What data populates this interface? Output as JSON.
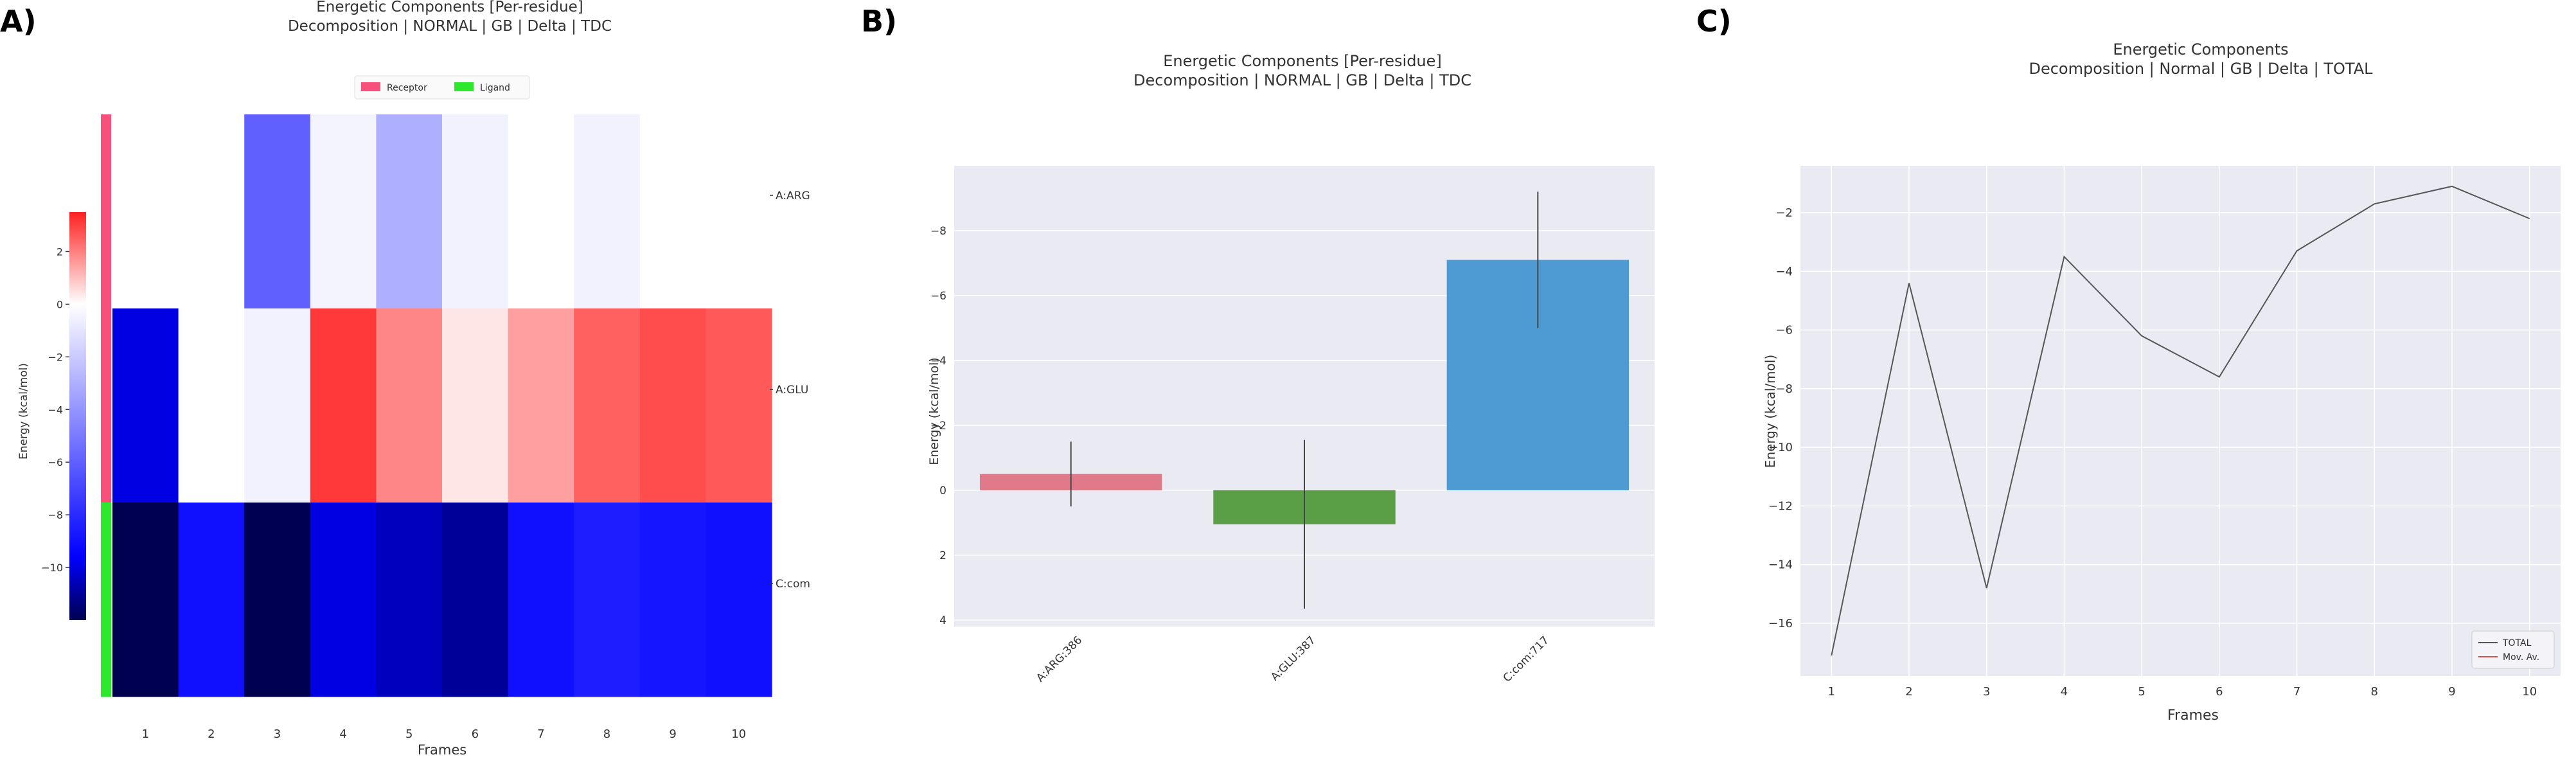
{
  "panels": {
    "A": {
      "label": "A)",
      "title_line1": "Energetic Components [Per-residue]",
      "title_line2": "Decomposition | NORMAL | GB | Delta | TDC",
      "legend": [
        {
          "name": "Receptor",
          "color": "#f7507a"
        },
        {
          "name": "Ligand",
          "color": "#2ee82e"
        }
      ],
      "colorbar_label": "Energy (kcal/mol)",
      "xlabel": "Frames"
    },
    "B": {
      "label": "B)",
      "title_line1": "Energetic Components [Per-residue]",
      "title_line2": "Decomposition | NORMAL | GB | Delta | TDC",
      "ylabel": "Energy (kcal/mol)"
    },
    "C": {
      "label": "C)",
      "title_line1": "Energetic Components",
      "title_line2": "Decomposition | Normal | GB | Delta | TOTAL",
      "ylabel": "Energy (kcal/mol)",
      "xlabel": "Frames",
      "legend": [
        {
          "name": "TOTAL",
          "color": "#555555"
        },
        {
          "name": "Mov. Av.",
          "color": "#e05050"
        }
      ]
    }
  },
  "chart_data": [
    {
      "type": "heatmap",
      "title": "Energetic Components [Per-residue]\nDecomposition | NORMAL | GB | Delta | TDC",
      "xlabel": "Frames",
      "x": [
        1,
        2,
        3,
        4,
        5,
        6,
        7,
        8,
        9,
        10
      ],
      "rows": [
        "A:ARG:386",
        "A:GLU:387",
        "C:com:717"
      ],
      "row_groups": [
        "Receptor",
        "Receptor",
        "Ligand"
      ],
      "values": [
        [
          0.0,
          0.0,
          -6.0,
          -0.4,
          -3.0,
          -0.5,
          0.0,
          -0.5,
          0.0,
          0.0
        ],
        [
          -10.0,
          0.0,
          -0.5,
          3.1,
          1.9,
          0.4,
          1.5,
          2.5,
          2.8,
          2.6
        ],
        [
          -12.0,
          -9.0,
          -13.0,
          -10.0,
          -10.5,
          -11.0,
          -9.0,
          -8.5,
          -8.8,
          -9.0
        ]
      ],
      "colorbar_ticks": [
        2,
        0,
        -2,
        -4,
        -6,
        -8,
        -10
      ],
      "colorbar_range": [
        -12,
        3.5
      ],
      "colorbar_label": "Energy (kcal/mol)"
    },
    {
      "type": "bar",
      "title": "Energetic Components [Per-residue]\nDecomposition | NORMAL | GB | Delta | TDC",
      "categories": [
        "A:ARG:386",
        "A:GLU:387",
        "C:com:717"
      ],
      "values": [
        -0.5,
        1.05,
        -7.1
      ],
      "errors": [
        1.0,
        2.6,
        2.1
      ],
      "colors": [
        "#e07a8a",
        "#5a9e45",
        "#4e9bd3"
      ],
      "ylabel": "Energy (kcal/mol)",
      "ylim": [
        4.2,
        -10
      ],
      "inverted_y": true,
      "yticks": [
        4,
        2,
        0,
        -2,
        -4,
        -6,
        -8
      ]
    },
    {
      "type": "line",
      "title": "Energetic Components\nDecomposition | Normal | GB | Delta | TOTAL",
      "x": [
        1,
        2,
        3,
        4,
        5,
        6,
        7,
        8,
        9,
        10
      ],
      "series": [
        {
          "name": "TOTAL",
          "values": [
            -17.1,
            -4.4,
            -14.8,
            -3.5,
            -6.2,
            -7.6,
            -3.3,
            -1.7,
            -1.1,
            -2.2
          ],
          "color": "#555555"
        }
      ],
      "legend_entries": [
        "TOTAL",
        "Mov. Av."
      ],
      "xlabel": "Frames",
      "ylabel": "Energy (kcal/mol)",
      "xlim": [
        0.6,
        10.4
      ],
      "ylim": [
        -17.8,
        -0.4
      ],
      "yticks": [
        -2,
        -4,
        -6,
        -8,
        -10,
        -12,
        -14,
        -16
      ],
      "legend_position": "bottom-right",
      "grid": true
    }
  ]
}
